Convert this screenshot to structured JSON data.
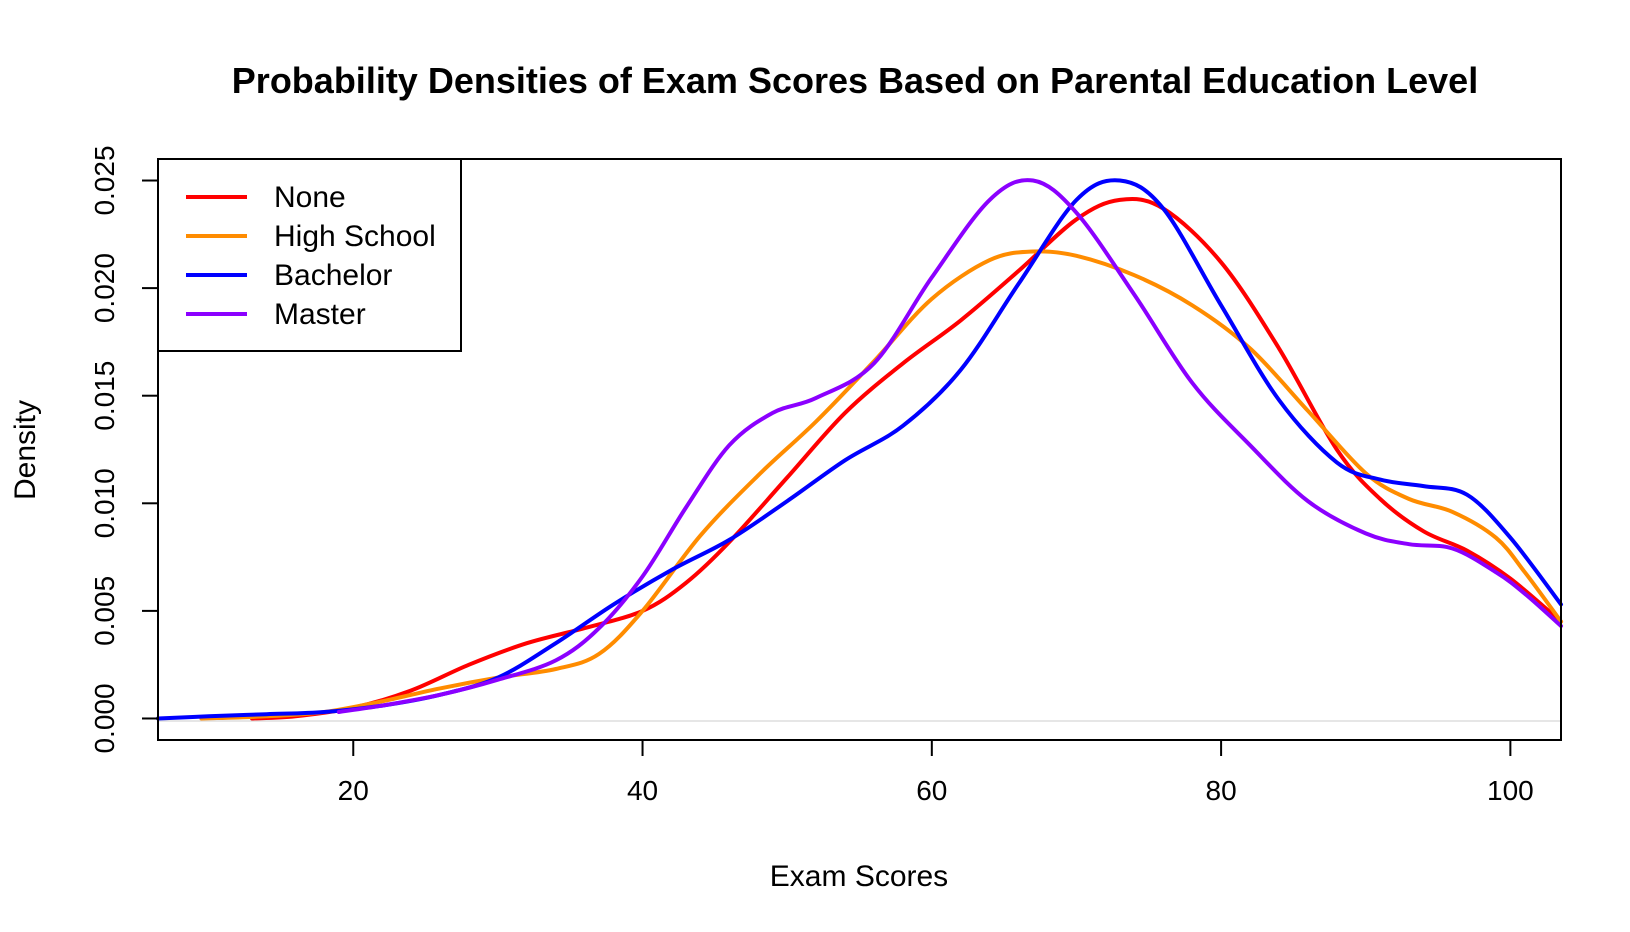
{
  "chart_data": {
    "type": "line",
    "title": "Probability Densities of Exam Scores Based on Parental Education Level",
    "xlabel": "Exam Scores",
    "ylabel": "Density",
    "xlim": [
      6.5,
      103.5
    ],
    "ylim": [
      -0.001,
      0.026
    ],
    "x_ticks": [
      20,
      40,
      60,
      80,
      100
    ],
    "x_tick_labels": [
      "20",
      "40",
      "60",
      "80",
      "100"
    ],
    "y_ticks": [
      0,
      0.005,
      0.01,
      0.015,
      0.02,
      0.025
    ],
    "y_tick_labels": [
      "0.000",
      "0.005",
      "0.010",
      "0.015",
      "0.020",
      "0.025"
    ],
    "grid": false,
    "legend_position": "top-left",
    "series": [
      {
        "name": "None",
        "color": "#ff0000",
        "x": [
          13,
          16,
          20,
          24,
          28,
          32,
          36,
          40,
          43,
          46,
          50,
          54,
          58,
          62,
          66,
          70,
          73,
          76,
          80,
          84,
          88,
          91,
          94,
          97,
          100,
          103.5
        ],
        "y": [
          0.0,
          0.0001,
          0.0005,
          0.0013,
          0.0025,
          0.0035,
          0.0042,
          0.005,
          0.0063,
          0.0082,
          0.0112,
          0.0142,
          0.0165,
          0.0185,
          0.0208,
          0.0232,
          0.0241,
          0.0237,
          0.0212,
          0.0172,
          0.0125,
          0.0102,
          0.0087,
          0.0078,
          0.0065,
          0.0045
        ]
      },
      {
        "name": "High School",
        "color": "#ff8c00",
        "x": [
          9.5,
          14,
          18,
          22,
          26,
          30,
          34,
          37,
          40,
          44,
          48,
          52,
          56,
          60,
          64,
          67,
          70,
          74,
          78,
          82,
          86,
          90,
          93,
          96,
          99,
          101,
          103.5
        ],
        "y": [
          0.0,
          0.0001,
          0.0003,
          0.0008,
          0.0014,
          0.0019,
          0.0023,
          0.003,
          0.005,
          0.0085,
          0.0113,
          0.0138,
          0.0166,
          0.0195,
          0.0213,
          0.0217,
          0.0215,
          0.0206,
          0.0192,
          0.0172,
          0.0143,
          0.0114,
          0.0102,
          0.0096,
          0.0084,
          0.0068,
          0.0045
        ]
      },
      {
        "name": "Bachelor",
        "color": "#0000ff",
        "x": [
          6.5,
          10,
          14,
          18,
          22,
          26,
          30,
          34,
          38,
          42,
          46,
          50,
          54,
          58,
          62,
          66,
          70,
          73,
          76,
          80,
          84,
          88,
          91,
          94,
          97,
          100,
          103.5
        ],
        "y": [
          0.0,
          0.0001,
          0.0002,
          0.0003,
          0.0006,
          0.0011,
          0.0019,
          0.0035,
          0.0053,
          0.0069,
          0.0083,
          0.0101,
          0.012,
          0.0136,
          0.0162,
          0.0202,
          0.0241,
          0.025,
          0.0237,
          0.0192,
          0.0148,
          0.0119,
          0.0111,
          0.0108,
          0.0104,
          0.0084,
          0.0053
        ]
      },
      {
        "name": "Master",
        "color": "#8b00ff",
        "x": [
          19,
          22,
          26,
          30,
          34,
          37,
          40,
          43,
          46,
          49,
          52,
          56,
          60,
          64,
          67,
          70,
          74,
          78,
          82,
          86,
          90,
          93,
          96,
          99,
          101,
          103.5
        ],
        "y": [
          0.0003,
          0.0006,
          0.0011,
          0.0018,
          0.0027,
          0.0042,
          0.0066,
          0.0098,
          0.0127,
          0.0142,
          0.0149,
          0.0165,
          0.0205,
          0.0241,
          0.025,
          0.0235,
          0.0197,
          0.0156,
          0.0127,
          0.0101,
          0.0086,
          0.0081,
          0.0079,
          0.0068,
          0.0058,
          0.0043
        ]
      }
    ]
  }
}
